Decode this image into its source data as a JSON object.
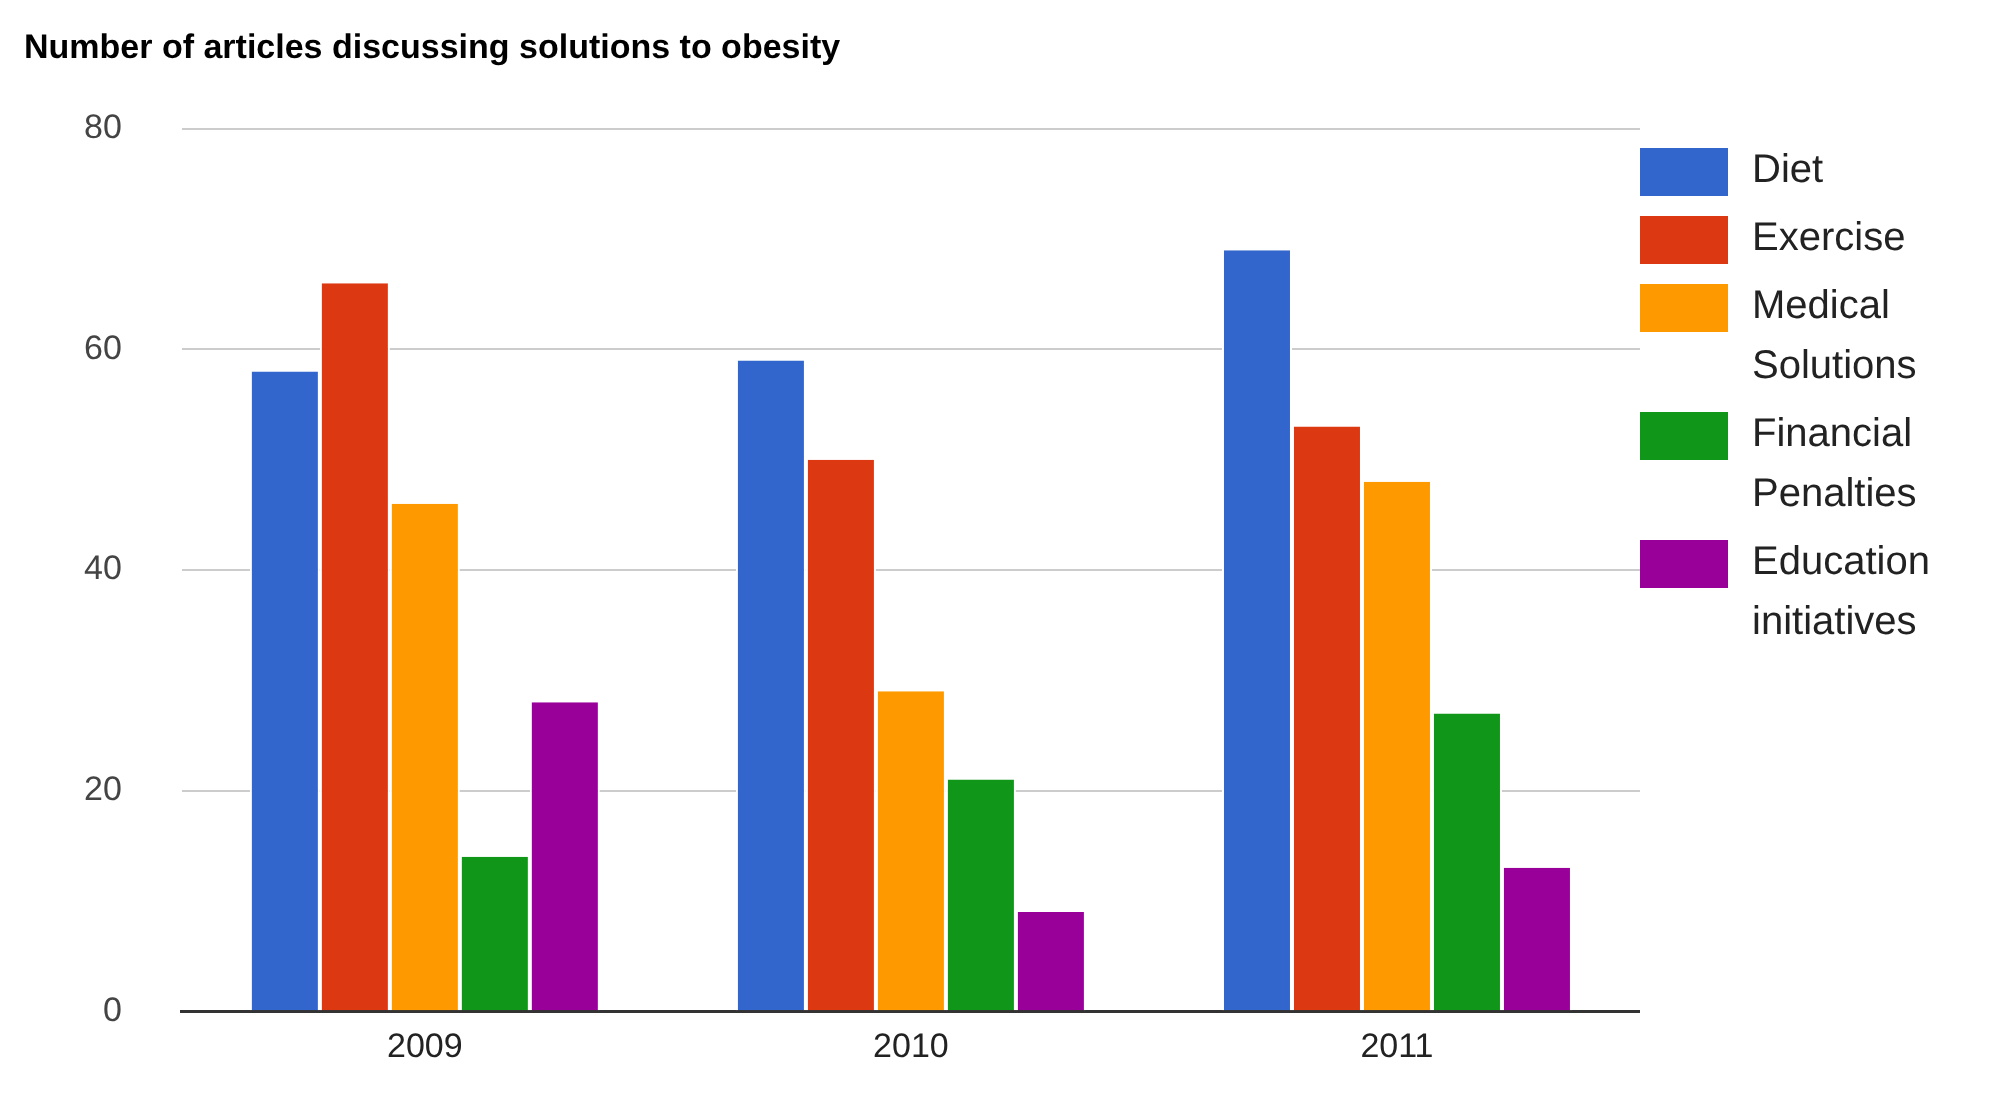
{
  "chart_data": {
    "type": "bar",
    "title": "Number of articles discussing solutions to obesity",
    "categories": [
      "2009",
      "2010",
      "2011"
    ],
    "series": [
      {
        "name": "Diet",
        "color": "#3366cc",
        "values": [
          58,
          59,
          69
        ]
      },
      {
        "name": "Exercise",
        "color": "#dc3912",
        "values": [
          66,
          50,
          53
        ]
      },
      {
        "name": "Medical Solutions",
        "color": "#ff9900",
        "values": [
          46,
          29,
          48
        ]
      },
      {
        "name": "Financial Penalties",
        "color": "#109618",
        "values": [
          14,
          21,
          27
        ]
      },
      {
        "name": "Education initiatives",
        "color": "#990099",
        "values": [
          28,
          9,
          13
        ]
      }
    ],
    "ylim": [
      0,
      80
    ],
    "yticks": [
      0,
      20,
      40,
      60,
      80
    ],
    "grid": "y",
    "legend": "right"
  }
}
